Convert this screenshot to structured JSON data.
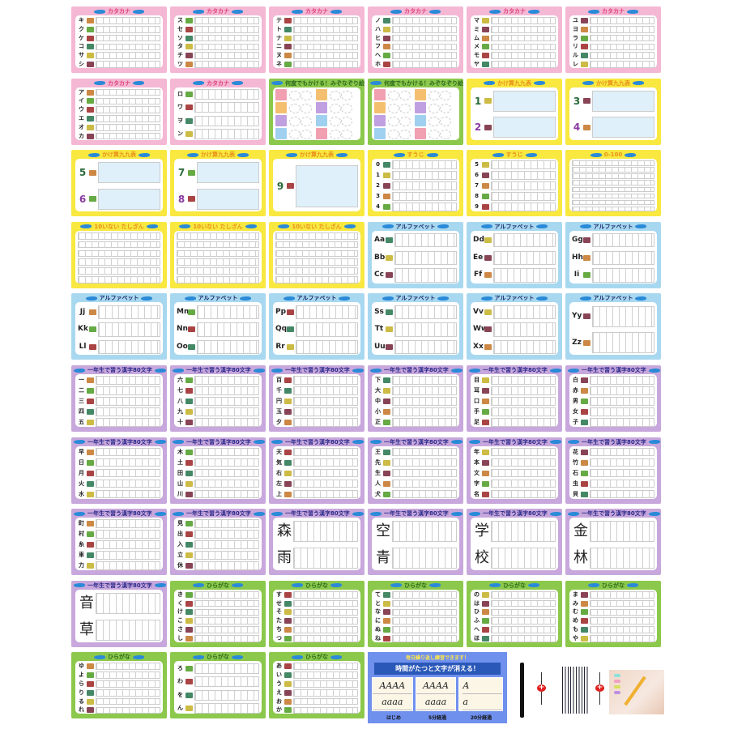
{
  "themes": {
    "pink": {
      "border": "#f4b8d4",
      "title": "#e0407a"
    },
    "yellow": {
      "border": "#f8e840",
      "title": "#e8901c"
    },
    "green": {
      "border": "#8cc84c",
      "title": "#2a6a1a"
    },
    "blue": {
      "border": "#a8d8f0",
      "title": "#1a2a6a"
    },
    "purple": {
      "border": "#c8a8dc",
      "title": "#2a2a8a"
    }
  },
  "cards": [
    {
      "title": "カタカナ",
      "theme": "pink",
      "chars": [
        "キ",
        "ク",
        "ケ",
        "コ",
        "サ",
        "シ"
      ]
    },
    {
      "title": "カタカナ",
      "theme": "pink",
      "chars": [
        "ス",
        "セ",
        "ソ",
        "タ",
        "チ",
        "ツ"
      ]
    },
    {
      "title": "カタカナ",
      "theme": "pink",
      "chars": [
        "テ",
        "ト",
        "ナ",
        "ニ",
        "ヌ",
        "ネ"
      ]
    },
    {
      "title": "カタカナ",
      "theme": "pink",
      "chars": [
        "ノ",
        "ハ",
        "ヒ",
        "フ",
        "ヘ",
        "ホ"
      ]
    },
    {
      "title": "カタカナ",
      "theme": "pink",
      "chars": [
        "マ",
        "ミ",
        "ム",
        "メ",
        "モ",
        "ヤ"
      ]
    },
    {
      "title": "カタカナ",
      "theme": "pink",
      "chars": [
        "ユ",
        "ヨ",
        "ラ",
        "リ",
        "ル",
        "レ"
      ]
    },
    {
      "title": "カタカナ",
      "theme": "pink",
      "chars": [
        "ア",
        "イ",
        "ウ",
        "エ",
        "オ",
        "カ"
      ]
    },
    {
      "title": "カタカナ",
      "theme": "pink",
      "chars": [
        "ロ",
        "ワ",
        "ヲ",
        "ン"
      ]
    },
    {
      "title": "何度でもかける！みぞなぞり絵",
      "theme": "green",
      "kind": "trace"
    },
    {
      "title": "何度でもかける！みぞなぞり絵",
      "theme": "green",
      "kind": "trace"
    },
    {
      "title": "かけ算九九表",
      "theme": "yellow",
      "chars": [
        "1",
        "2"
      ],
      "kind": "kuku"
    },
    {
      "title": "かけ算九九表",
      "theme": "yellow",
      "chars": [
        "3",
        "4"
      ],
      "kind": "kuku"
    },
    {
      "title": "かけ算九九表",
      "theme": "yellow",
      "chars": [
        "5",
        "6"
      ],
      "kind": "kuku"
    },
    {
      "title": "かけ算九九表",
      "theme": "yellow",
      "chars": [
        "7",
        "8"
      ],
      "kind": "kuku"
    },
    {
      "title": "かけ算九九表",
      "theme": "yellow",
      "chars": [
        "9"
      ],
      "kind": "kuku"
    },
    {
      "title": "すうじ",
      "theme": "yellow",
      "chars": [
        "0",
        "1",
        "2",
        "3",
        "4"
      ]
    },
    {
      "title": "すうじ",
      "theme": "yellow",
      "chars": [
        "5",
        "6",
        "7",
        "8",
        "9"
      ]
    },
    {
      "title": "0-100",
      "theme": "yellow",
      "chars": [
        "",
        "",
        "",
        "",
        "",
        "",
        "",
        ""
      ]
    },
    {
      "title": "10いない たしざん",
      "theme": "yellow",
      "chars": [
        "",
        "",
        "",
        "",
        "",
        ""
      ]
    },
    {
      "title": "10いない たしざん",
      "theme": "yellow",
      "chars": [
        "",
        "",
        "",
        "",
        "",
        ""
      ]
    },
    {
      "title": "10いない たしざん",
      "theme": "yellow",
      "chars": [
        "",
        "",
        "",
        "",
        "",
        ""
      ]
    },
    {
      "title": "アルファベット",
      "theme": "blue",
      "chars": [
        "Aa",
        "Bb",
        "Cc"
      ],
      "kind": "alpha"
    },
    {
      "title": "アルファベット",
      "theme": "blue",
      "chars": [
        "Dd",
        "Ee",
        "Ff"
      ],
      "kind": "alpha"
    },
    {
      "title": "アルファベット",
      "theme": "blue",
      "chars": [
        "Gg",
        "Hh",
        "Ii"
      ],
      "kind": "alpha"
    },
    {
      "title": "アルファベット",
      "theme": "blue",
      "chars": [
        "Jj",
        "Kk",
        "Ll"
      ],
      "kind": "alpha"
    },
    {
      "title": "アルファベット",
      "theme": "blue",
      "chars": [
        "Mm",
        "Nn",
        "Oo"
      ],
      "kind": "alpha"
    },
    {
      "title": "アルファベット",
      "theme": "blue",
      "chars": [
        "Pp",
        "Qq",
        "Rr"
      ],
      "kind": "alpha"
    },
    {
      "title": "アルファベット",
      "theme": "blue",
      "chars": [
        "Ss",
        "Tt",
        "Uu"
      ],
      "kind": "alpha"
    },
    {
      "title": "アルファベット",
      "theme": "blue",
      "chars": [
        "Vv",
        "Ww",
        "Xx"
      ],
      "kind": "alpha"
    },
    {
      "title": "アルファベット",
      "theme": "blue",
      "chars": [
        "Yy",
        "Zz"
      ],
      "kind": "alpha"
    },
    {
      "title": "一年生で習う漢字80文字",
      "theme": "purple",
      "chars": [
        "一",
        "二",
        "三",
        "四",
        "五"
      ]
    },
    {
      "title": "一年生で習う漢字80文字",
      "theme": "purple",
      "chars": [
        "六",
        "七",
        "八",
        "九",
        "十"
      ]
    },
    {
      "title": "一年生で習う漢字80文字",
      "theme": "purple",
      "chars": [
        "百",
        "千",
        "円",
        "玉",
        "夕"
      ]
    },
    {
      "title": "一年生で習う漢字80文字",
      "theme": "purple",
      "chars": [
        "下",
        "大",
        "中",
        "小",
        "正"
      ]
    },
    {
      "title": "一年生で習う漢字80文字",
      "theme": "purple",
      "chars": [
        "目",
        "耳",
        "口",
        "手",
        "足"
      ]
    },
    {
      "title": "一年生で習う漢字80文字",
      "theme": "purple",
      "chars": [
        "白",
        "赤",
        "男",
        "女",
        "子"
      ]
    },
    {
      "title": "一年生で習う漢字80文字",
      "theme": "purple",
      "chars": [
        "早",
        "日",
        "月",
        "火",
        "水"
      ]
    },
    {
      "title": "一年生で習う漢字80文字",
      "theme": "purple",
      "chars": [
        "木",
        "土",
        "田",
        "山",
        "川"
      ]
    },
    {
      "title": "一年生で習う漢字80文字",
      "theme": "purple",
      "chars": [
        "天",
        "気",
        "右",
        "左",
        "上"
      ]
    },
    {
      "title": "一年生で習う漢字80文字",
      "theme": "purple",
      "chars": [
        "王",
        "先",
        "生",
        "人",
        "犬"
      ]
    },
    {
      "title": "一年生で習う漢字80文字",
      "theme": "purple",
      "chars": [
        "年",
        "本",
        "文",
        "字",
        "名"
      ]
    },
    {
      "title": "一年生で習う漢字80文字",
      "theme": "purple",
      "chars": [
        "花",
        "竹",
        "石",
        "虫",
        "貝"
      ]
    },
    {
      "title": "一年生で習う漢字80文字",
      "theme": "purple",
      "chars": [
        "町",
        "村",
        "糸",
        "車",
        "力"
      ]
    },
    {
      "title": "一年生で習う漢字80文字",
      "theme": "purple",
      "chars": [
        "見",
        "出",
        "入",
        "立",
        "休"
      ]
    },
    {
      "title": "一年生で習う漢字80文字",
      "theme": "purple",
      "chars": [
        "森",
        "雨"
      ],
      "kind": "big"
    },
    {
      "title": "一年生で習う漢字80文字",
      "theme": "purple",
      "chars": [
        "空",
        "青"
      ],
      "kind": "big"
    },
    {
      "title": "一年生で習う漢字80文字",
      "theme": "purple",
      "chars": [
        "学",
        "校"
      ],
      "kind": "big"
    },
    {
      "title": "一年生で習う漢字80文字",
      "theme": "purple",
      "chars": [
        "金",
        "林"
      ],
      "kind": "big"
    },
    {
      "title": "一年生で習う漢字80文字",
      "theme": "purple",
      "chars": [
        "音",
        "草"
      ],
      "kind": "big"
    },
    {
      "title": "ひらがな",
      "theme": "green",
      "chars": [
        "き",
        "く",
        "け",
        "こ",
        "さ",
        "し"
      ]
    },
    {
      "title": "ひらがな",
      "theme": "green",
      "chars": [
        "す",
        "せ",
        "そ",
        "た",
        "ち",
        "つ"
      ]
    },
    {
      "title": "ひらがな",
      "theme": "green",
      "chars": [
        "て",
        "と",
        "な",
        "に",
        "ぬ",
        "ね"
      ]
    },
    {
      "title": "ひらがな",
      "theme": "green",
      "chars": [
        "の",
        "は",
        "ひ",
        "ふ",
        "へ",
        "ほ"
      ]
    },
    {
      "title": "ひらがな",
      "theme": "green",
      "chars": [
        "ま",
        "み",
        "む",
        "め",
        "も",
        "や"
      ]
    },
    {
      "title": "ひらがな",
      "theme": "green",
      "chars": [
        "ゆ",
        "よ",
        "ら",
        "り",
        "る",
        "れ"
      ]
    },
    {
      "title": "ひらがな",
      "theme": "green",
      "chars": [
        "ろ",
        "わ",
        "を",
        "ん"
      ]
    },
    {
      "title": "ひらがな",
      "theme": "green",
      "chars": [
        "あ",
        "い",
        "う",
        "え",
        "お",
        "か"
      ]
    }
  ],
  "promo": {
    "top": "毎日繰り返し練習できます！",
    "headline": "時間がたつと文字が消える！",
    "panels": [
      {
        "upper": "AAAA",
        "lower": "aaaa",
        "caption": "はじめ"
      },
      {
        "upper": "AAAA",
        "lower": "aaaa",
        "caption": "5分経過"
      },
      {
        "upper": "A",
        "lower": "a",
        "caption": "20分経過"
      }
    ],
    "bg": "#7090ee"
  },
  "products": {
    "items": [
      "pen-icon",
      "plus-icon",
      "refills-icon",
      "plus-icon",
      "pencil-grip-photo"
    ],
    "plus_color": "#e02020"
  }
}
